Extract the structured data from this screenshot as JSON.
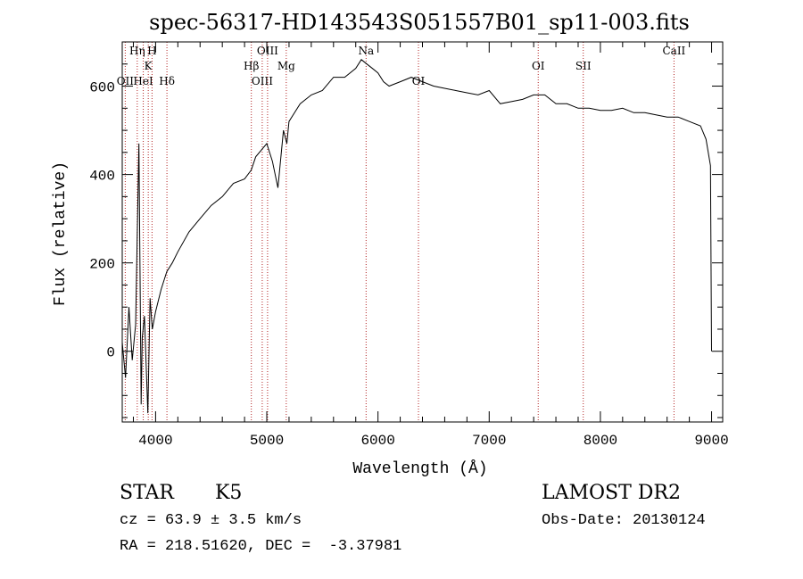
{
  "chart_data": {
    "type": "line",
    "title": "spec-56317-HD143543S051557B01_sp11-003.fits",
    "xlabel": "Wavelength (Å)",
    "ylabel": "Flux (relative)",
    "xlim": [
      3700,
      9100
    ],
    "ylim": [
      -160,
      700
    ],
    "x_ticks": [
      "4000",
      "5000",
      "6000",
      "7000",
      "8000",
      "9000"
    ],
    "y_ticks": [
      "0",
      "200",
      "400",
      "600"
    ],
    "x_tick_values": [
      4000,
      5000,
      6000,
      7000,
      8000,
      9000
    ],
    "y_tick_values": [
      0,
      200,
      400,
      600
    ],
    "grid": false,
    "colors": {
      "spectrum": "#000000",
      "lines": "#b22222",
      "axes": "#000000"
    },
    "series": [
      {
        "x": [
          3700,
          3730,
          3760,
          3790,
          3820,
          3850,
          3870,
          3880,
          3900,
          3930,
          3950,
          3970,
          4000,
          4050,
          4100,
          4150,
          4200,
          4300,
          4400,
          4500,
          4600,
          4700,
          4800,
          4860,
          4900,
          5000,
          5050,
          5100,
          5150,
          5180,
          5200,
          5300,
          5400,
          5500,
          5600,
          5700,
          5800,
          5850,
          5900,
          5950,
          6000,
          6050,
          6100,
          6200,
          6300,
          6400,
          6500,
          6600,
          6700,
          6800,
          6900,
          7000,
          7100,
          7200,
          7300,
          7400,
          7500,
          7600,
          7700,
          7800,
          7900,
          8000,
          8100,
          8200,
          8300,
          8400,
          8500,
          8600,
          8700,
          8800,
          8900,
          8950,
          8990,
          9000
        ],
        "y": [
          20,
          -60,
          100,
          -20,
          60,
          470,
          -120,
          30,
          80,
          -140,
          120,
          50,
          90,
          140,
          180,
          200,
          225,
          270,
          300,
          330,
          350,
          380,
          390,
          410,
          440,
          470,
          430,
          370,
          500,
          470,
          520,
          560,
          580,
          590,
          620,
          620,
          640,
          660,
          650,
          640,
          630,
          610,
          600,
          610,
          620,
          610,
          600,
          595,
          590,
          585,
          580,
          590,
          560,
          565,
          570,
          580,
          580,
          560,
          560,
          550,
          550,
          545,
          545,
          550,
          540,
          540,
          535,
          530,
          530,
          520,
          510,
          480,
          420,
          0
        ]
      }
    ],
    "emission_lines": [
      {
        "label": "OII",
        "x": 3727,
        "row": 3
      },
      {
        "label": "Hη",
        "x": 3835,
        "row": 1
      },
      {
        "label": "HeI",
        "x": 3889,
        "row": 3
      },
      {
        "label": "K",
        "x": 3934,
        "row": 2
      },
      {
        "label": "H",
        "x": 3968,
        "row": 1
      },
      {
        "label": "Hδ",
        "x": 4102,
        "row": 3
      },
      {
        "label": "Hβ",
        "x": 4861,
        "row": 2
      },
      {
        "label": "OIII",
        "x": 4959,
        "row": 3
      },
      {
        "label": "OIII",
        "x": 5007,
        "row": 1
      },
      {
        "label": "Mg",
        "x": 5175,
        "row": 2
      },
      {
        "label": "Na",
        "x": 5893,
        "row": 1
      },
      {
        "label": "OI",
        "x": 6364,
        "row": 3
      },
      {
        "label": "OI",
        "x": 7441,
        "row": 2
      },
      {
        "label": "SII",
        "x": 7846,
        "row": 2
      },
      {
        "label": "CaII",
        "x": 8662,
        "row": 1
      }
    ]
  },
  "info": {
    "class_label": "STAR",
    "subclass": "K5",
    "survey": "LAMOST DR2",
    "cz_line": "cz = 63.9 ± 3.5 km/s",
    "obs_date_line": "Obs-Date: 20130124",
    "coords_line": "RA = 218.51620, DEC =  -3.37981"
  }
}
